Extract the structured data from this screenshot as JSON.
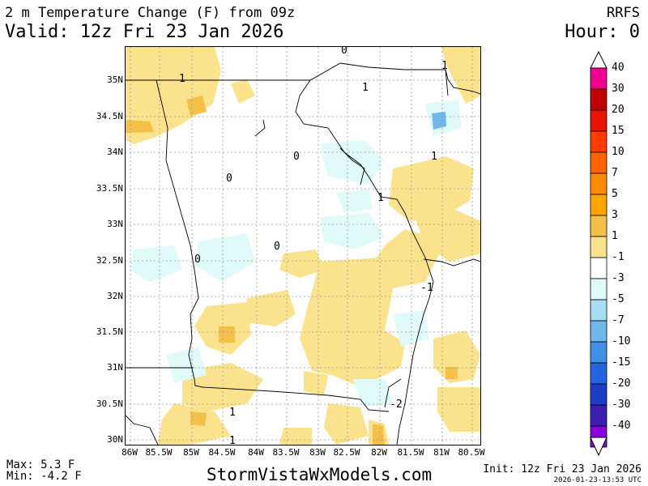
{
  "header": {
    "title": "2 m Temperature Change (F) from 09z",
    "valid": "Valid: 12z Fri 23 Jan 2026",
    "model": "RRFS",
    "hour": "Hour: 0"
  },
  "axes": {
    "lat_labels": [
      "35N",
      "34.5N",
      "34N",
      "33.5N",
      "33N",
      "32.5N",
      "32N",
      "31.5N",
      "31N",
      "30.5N",
      "30N"
    ],
    "lon_labels": [
      "86W",
      "85.5W",
      "85W",
      "84.5W",
      "84W",
      "83.5W",
      "83W",
      "82.5W",
      "82W",
      "81.5W",
      "81W",
      "80.5W"
    ]
  },
  "contour_labels": [
    "0",
    "1",
    "1",
    "1",
    "1",
    "0",
    "0",
    "0",
    "0",
    "1",
    "1",
    "-1",
    "-2",
    "1"
  ],
  "colorbar": {
    "labels": [
      "40",
      "30",
      "20",
      "15",
      "10",
      "7",
      "5",
      "3",
      "1",
      "-1",
      "-3",
      "-5",
      "-7",
      "-10",
      "-15",
      "-20",
      "-30",
      "-40"
    ],
    "colors": [
      "#f0008c",
      "#c00000",
      "#e61400",
      "#ff3c00",
      "#ff6400",
      "#ff8c00",
      "#ffa500",
      "#f5c04a",
      "#fbe28c",
      "#ffffff",
      "#e0fafa",
      "#a8dcf0",
      "#70b8ea",
      "#4090e6",
      "#2464e0",
      "#1e3cc8",
      "#3c1eb4",
      "#8c00dc"
    ]
  },
  "stats": {
    "max": "Max: 5.3 F",
    "min": "Min: -4.2 F"
  },
  "footer": {
    "site": "StormVistaWxModels.com",
    "init": "Init: 12z Fri 23 Jan 2026",
    "stamp": "2026-01-23-13:53 UTC"
  }
}
